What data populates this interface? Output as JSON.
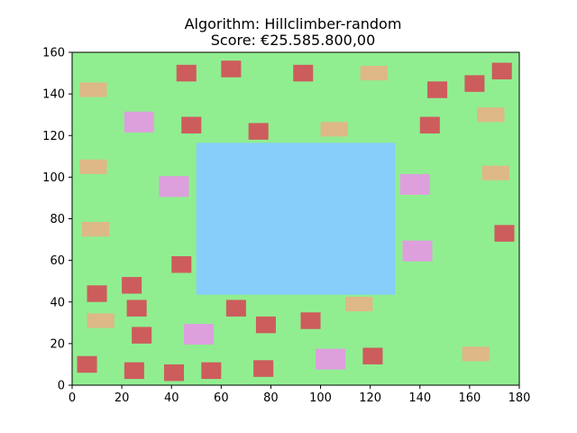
{
  "chart_data": {
    "type": "scatter",
    "title": "Algorithm: Hillclimber-random",
    "subtitle": "Score: €25.585.800,00",
    "xlabel": "",
    "ylabel": "",
    "xlim": [
      0,
      180
    ],
    "ylim": [
      0,
      160
    ],
    "xticks": [
      "0",
      "20",
      "40",
      "60",
      "80",
      "100",
      "120",
      "140",
      "160",
      "180"
    ],
    "yticks": [
      "0",
      "20",
      "40",
      "60",
      "80",
      "100",
      "120",
      "140",
      "160"
    ],
    "grid": false,
    "legend": false,
    "colors": {
      "background": "#90ee90",
      "water": "#87cefa",
      "red": "#cd5c5c",
      "orange": "#deb887",
      "pink": "#dda0dd"
    },
    "water": {
      "x0": 50,
      "x1": 130,
      "y0": 43.5,
      "y1": 116.5
    },
    "houses": [
      {
        "kind": "red",
        "x0": 42,
        "x1": 50,
        "y0": 146,
        "y1": 154
      },
      {
        "kind": "red",
        "x0": 60,
        "x1": 68,
        "y0": 148,
        "y1": 156
      },
      {
        "kind": "red",
        "x0": 89,
        "x1": 97,
        "y0": 146,
        "y1": 154
      },
      {
        "kind": "orange",
        "x0": 116,
        "x1": 127,
        "y0": 146.5,
        "y1": 153.5
      },
      {
        "kind": "red",
        "x0": 169,
        "x1": 177,
        "y0": 147,
        "y1": 155
      },
      {
        "kind": "red",
        "x0": 158,
        "x1": 166,
        "y0": 141,
        "y1": 149
      },
      {
        "kind": "red",
        "x0": 143,
        "x1": 151,
        "y0": 138,
        "y1": 146
      },
      {
        "kind": "orange",
        "x0": 3,
        "x1": 14,
        "y0": 138.5,
        "y1": 145.5
      },
      {
        "kind": "pink",
        "x0": 21,
        "x1": 33,
        "y0": 121.5,
        "y1": 131.5
      },
      {
        "kind": "red",
        "x0": 44,
        "x1": 52,
        "y0": 121,
        "y1": 129
      },
      {
        "kind": "red",
        "x0": 71,
        "x1": 79,
        "y0": 118,
        "y1": 126
      },
      {
        "kind": "orange",
        "x0": 100,
        "x1": 111,
        "y0": 119.5,
        "y1": 126.5
      },
      {
        "kind": "red",
        "x0": 140,
        "x1": 148,
        "y0": 121,
        "y1": 129
      },
      {
        "kind": "orange",
        "x0": 163,
        "x1": 174,
        "y0": 126.5,
        "y1": 133.5
      },
      {
        "kind": "orange",
        "x0": 3,
        "x1": 14,
        "y0": 101.5,
        "y1": 108.5
      },
      {
        "kind": "pink",
        "x0": 35,
        "x1": 47,
        "y0": 90.5,
        "y1": 100.5
      },
      {
        "kind": "pink",
        "x0": 132,
        "x1": 144,
        "y0": 91.5,
        "y1": 101.5
      },
      {
        "kind": "orange",
        "x0": 165,
        "x1": 176,
        "y0": 98.5,
        "y1": 105.5
      },
      {
        "kind": "orange",
        "x0": 4,
        "x1": 15,
        "y0": 71.5,
        "y1": 78.5
      },
      {
        "kind": "pink",
        "x0": 133,
        "x1": 145,
        "y0": 59.5,
        "y1": 69.5
      },
      {
        "kind": "red",
        "x0": 170,
        "x1": 178,
        "y0": 69,
        "y1": 77
      },
      {
        "kind": "red",
        "x0": 40,
        "x1": 48,
        "y0": 54,
        "y1": 62
      },
      {
        "kind": "red",
        "x0": 20,
        "x1": 28,
        "y0": 44,
        "y1": 52
      },
      {
        "kind": "red",
        "x0": 6,
        "x1": 14,
        "y0": 40,
        "y1": 48
      },
      {
        "kind": "red",
        "x0": 22,
        "x1": 30,
        "y0": 33,
        "y1": 41
      },
      {
        "kind": "red",
        "x0": 62,
        "x1": 70,
        "y0": 33,
        "y1": 41
      },
      {
        "kind": "orange",
        "x0": 110,
        "x1": 121,
        "y0": 35.5,
        "y1": 42.5
      },
      {
        "kind": "orange",
        "x0": 6,
        "x1": 17,
        "y0": 27.5,
        "y1": 34.5
      },
      {
        "kind": "red",
        "x0": 74,
        "x1": 82,
        "y0": 25,
        "y1": 33
      },
      {
        "kind": "red",
        "x0": 92,
        "x1": 100,
        "y0": 27,
        "y1": 35
      },
      {
        "kind": "red",
        "x0": 24,
        "x1": 32,
        "y0": 20,
        "y1": 28
      },
      {
        "kind": "pink",
        "x0": 45,
        "x1": 57,
        "y0": 19.5,
        "y1": 29.5
      },
      {
        "kind": "pink",
        "x0": 98,
        "x1": 110,
        "y0": 7.5,
        "y1": 17.5
      },
      {
        "kind": "red",
        "x0": 117,
        "x1": 125,
        "y0": 10,
        "y1": 18
      },
      {
        "kind": "orange",
        "x0": 157,
        "x1": 168,
        "y0": 11.5,
        "y1": 18.5
      },
      {
        "kind": "red",
        "x0": 2,
        "x1": 10,
        "y0": 6,
        "y1": 14
      },
      {
        "kind": "red",
        "x0": 21,
        "x1": 29,
        "y0": 3,
        "y1": 11
      },
      {
        "kind": "red",
        "x0": 37,
        "x1": 45,
        "y0": 2,
        "y1": 10
      },
      {
        "kind": "red",
        "x0": 52,
        "x1": 60,
        "y0": 3,
        "y1": 11
      },
      {
        "kind": "red",
        "x0": 73,
        "x1": 81,
        "y0": 4,
        "y1": 12
      }
    ]
  }
}
